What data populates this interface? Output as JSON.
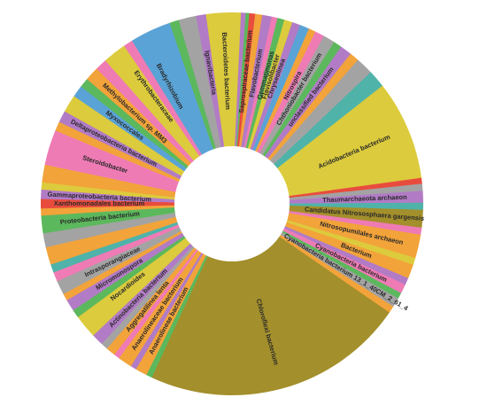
{
  "chart_data": {
    "type": "donut",
    "categories": [
      "Bacteroidetes bacterium",
      null,
      null,
      "Saprospiraceae bacterium",
      null,
      "Flavobacterium",
      null,
      "Gemmatimonas",
      "Flavisolibacter",
      "Chryseolinea",
      null,
      null,
      "Nitrospira",
      "Chthoniobacter bacterium",
      null,
      "unclassified bacterium",
      null,
      null,
      null,
      "Acidobacteria bacterium",
      null,
      null,
      "Thaumarchaeota archaeon",
      null,
      "Candidatus Nitrososphaera gargensis",
      null,
      "Nitrosopumilales archaeon",
      null,
      "Bacterium",
      null,
      "Cyanobacteria bacterium",
      null,
      "Cyanobacteria bacterium 13_1_40CM_2_61_4",
      null,
      "Chloroflexi bacterium",
      null,
      "Anaerolineae bacterium",
      null,
      "Anaerolineaceae bacterium",
      null,
      "Aggregatilinea lenta",
      null,
      "Actinobacteria bacterium",
      null,
      "Nocardioides",
      null,
      "Micromonospora",
      null,
      "Intrasporangiaceae",
      null,
      null,
      null,
      null,
      "Proteobacteria bacterium",
      null,
      "Xanthomonadales bacterium",
      "Gammaproteobacteria bacterium",
      null,
      null,
      "Steroidobacter",
      null,
      "Deltaproteobacteria bacterium",
      null,
      "Myxococcales",
      null,
      "Methylobacterium sp. MM3",
      null,
      null,
      "Erythrobacteraceae",
      null,
      "Bradyrhizobium",
      null,
      null,
      null,
      "Ignavibacteria"
    ],
    "values": [
      3.0,
      0.4,
      0.3,
      0.5,
      0.6,
      0.8,
      0.5,
      0.6,
      0.7,
      0.7,
      0.8,
      0.6,
      0.8,
      1.0,
      0.7,
      1.0,
      0.8,
      1.5,
      1.5,
      8.5,
      0.5,
      0.6,
      1.0,
      0.6,
      1.5,
      0.6,
      2.0,
      0.6,
      1.2,
      0.6,
      0.8,
      0.5,
      0.8,
      0.6,
      22.5,
      0.5,
      1.0,
      0.5,
      1.2,
      0.5,
      0.8,
      0.6,
      1.0,
      0.8,
      1.2,
      0.7,
      1.0,
      0.6,
      1.2,
      0.8,
      0.7,
      1.5,
      1.2,
      1.5,
      0.6,
      0.8,
      0.8,
      0.6,
      1.5,
      3.0,
      0.8,
      1.0,
      1.5,
      1.0,
      0.8,
      1.2,
      1.0,
      1.0,
      1.0,
      0.8,
      2.0,
      1.5,
      0.8,
      1.5,
      0.8
    ],
    "colors": [
      "#dccb3c",
      "#b27bc6",
      "#5cb85c",
      "#e84c3d",
      "#f2a33a",
      "#b27bc6",
      "#ef7bb5",
      "#5cb85c",
      "#dccb3c",
      "#b27bc6",
      "#5aa3d6",
      "#f2a33a",
      "#ef7bb5",
      "#a3a3a3",
      "#5cb85c",
      "#b27bc6",
      "#f2a33a",
      "#a3a3a3",
      "#4fb3a9",
      "#dccb3c",
      "#e84c3d",
      "#a3a3a3",
      "#b27bc6",
      "#4fb3a9",
      "#a38f2b",
      "#ef7bb5",
      "#f2a33a",
      "#dccb3c",
      "#f2a33a",
      "#b27bc6",
      "#ef7bb5",
      "#5cb85c",
      "#a3a3a3",
      "#f2a33a",
      "#a38f2b",
      "#5cb85c",
      "#f2a33a",
      "#b27bc6",
      "#f2a33a",
      "#ef7bb5",
      "#f2a33a",
      "#a3a3a3",
      "#b27bc6",
      "#dccb3c",
      "#dccb3c",
      "#5cb85c",
      "#b27bc6",
      "#f2a33a",
      "#a3a3a3",
      "#ef7bb5",
      "#4fb3a9",
      "#f2a33a",
      "#a3a3a3",
      "#5cb85c",
      "#f2a33a",
      "#e84c3d",
      "#b27bc6",
      "#dccb3c",
      "#f2a33a",
      "#ef7bb5",
      "#f2a33a",
      "#b27bc6",
      "#dccb3c",
      "#5aa3d6",
      "#5cb85c",
      "#f2a33a",
      "#ef7bb5",
      "#dccb3c",
      "#dccb3c",
      "#ef7bb5",
      "#5aa3d6",
      "#5aa3d6",
      "#5cb85c",
      "#a3a3a3",
      "#b27bc6"
    ]
  }
}
